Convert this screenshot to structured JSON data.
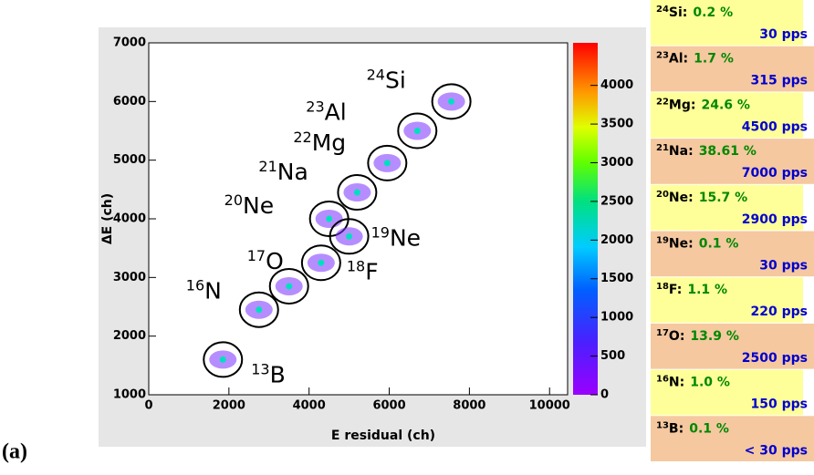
{
  "panel_label": "(a)",
  "chart_data": {
    "type": "scatter",
    "xlabel": "E residual (ch)",
    "ylabel": "ΔE (ch)",
    "xlim": [
      0,
      10450
    ],
    "xticks": [
      0,
      2000,
      4000,
      6000,
      8000,
      10000
    ],
    "ylim": [
      1000,
      7000
    ],
    "yticks": [
      1000,
      2000,
      3000,
      4000,
      5000,
      6000,
      7000
    ],
    "zlim": [
      0,
      4550
    ],
    "zticks": [
      0,
      500,
      1000,
      1500,
      2000,
      2500,
      3000,
      3500,
      4000
    ],
    "x": [
      7550,
      6700,
      5950,
      5200,
      4500,
      5000,
      4300,
      3500,
      2750,
      1850
    ],
    "values": [
      6000,
      5500,
      4950,
      4450,
      4000,
      3700,
      3250,
      2850,
      2450,
      1600
    ],
    "point_labels": [
      {
        "mass": "24",
        "element": "Si"
      },
      {
        "mass": "23",
        "element": "Al"
      },
      {
        "mass": "22",
        "element": "Mg"
      },
      {
        "mass": "21",
        "element": "Na"
      },
      {
        "mass": "20",
        "element": "Ne"
      },
      {
        "mass": "19",
        "element": "Ne"
      },
      {
        "mass": "18",
        "element": "F"
      },
      {
        "mass": "17",
        "element": "O"
      },
      {
        "mass": "16",
        "element": "N"
      },
      {
        "mass": "13",
        "element": "B"
      }
    ]
  },
  "table": {
    "rows": [
      {
        "mass": "24",
        "name": "Si:",
        "percent": "0.2 %",
        "rate": "30 pps"
      },
      {
        "mass": "23",
        "name": "Al:",
        "percent": "1.7 %",
        "rate": "315 pps"
      },
      {
        "mass": "22",
        "name": "Mg:",
        "percent": "24.6 %",
        "rate": "4500 pps"
      },
      {
        "mass": "21",
        "name": "Na:",
        "percent": "38.61 %",
        "rate": "7000 pps"
      },
      {
        "mass": "20",
        "name": "Ne:",
        "percent": "15.7 %",
        "rate": "2900 pps"
      },
      {
        "mass": "19",
        "name": "Ne:",
        "percent": "0.1 %",
        "rate": "30 pps"
      },
      {
        "mass": "18",
        "name": "F:",
        "percent": "1.1 %",
        "rate": "220 pps"
      },
      {
        "mass": "17",
        "name": "O:",
        "percent": "13.9 %",
        "rate": "2500 pps"
      },
      {
        "mass": "16",
        "name": "N:",
        "percent": "1.0 %",
        "rate": "150 pps"
      },
      {
        "mass": "13",
        "name": "B:",
        "percent": "0.1 %",
        "rate": "< 30 pps"
      }
    ]
  }
}
